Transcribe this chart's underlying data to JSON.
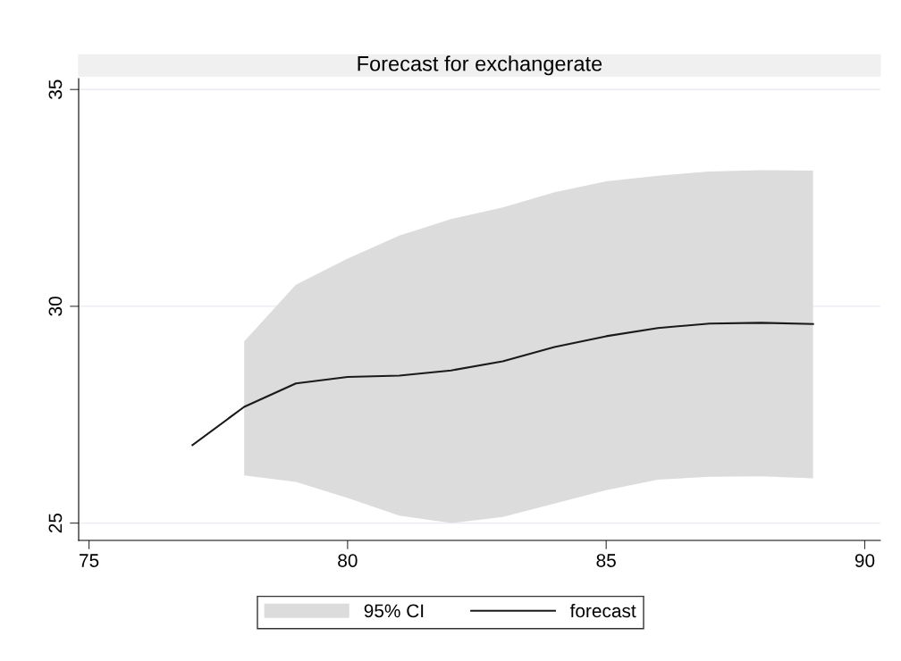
{
  "chart_data": {
    "type": "line",
    "title": "Forecast for exchangerate",
    "annotations": [
      "95% CI"
    ],
    "xlim": [
      74.8,
      90.3
    ],
    "xticks": [
      75,
      80,
      85,
      90
    ],
    "ylim": [
      24.6,
      35.25
    ],
    "yticks": [
      25,
      30,
      35
    ],
    "grid": "y",
    "legend": "bottom",
    "series": [
      {
        "name": "forecast",
        "color": "#1a1a1a",
        "x": [
          77,
          78,
          79,
          80,
          81,
          82,
          83,
          84,
          85,
          86,
          87,
          88,
          89
        ],
        "values": [
          26.8,
          27.68,
          28.22,
          28.37,
          28.4,
          28.52,
          28.73,
          29.06,
          29.31,
          29.5,
          29.6,
          29.62,
          29.59
        ],
        "lower": [
          null,
          26.1,
          25.95,
          25.58,
          25.17,
          25.0,
          25.14,
          25.45,
          25.76,
          26.0,
          26.07,
          26.08,
          26.03
        ],
        "upper": [
          null,
          29.19,
          30.5,
          31.1,
          31.63,
          32.01,
          32.28,
          32.63,
          32.88,
          33.01,
          33.11,
          33.14,
          33.13
        ]
      }
    ]
  }
}
